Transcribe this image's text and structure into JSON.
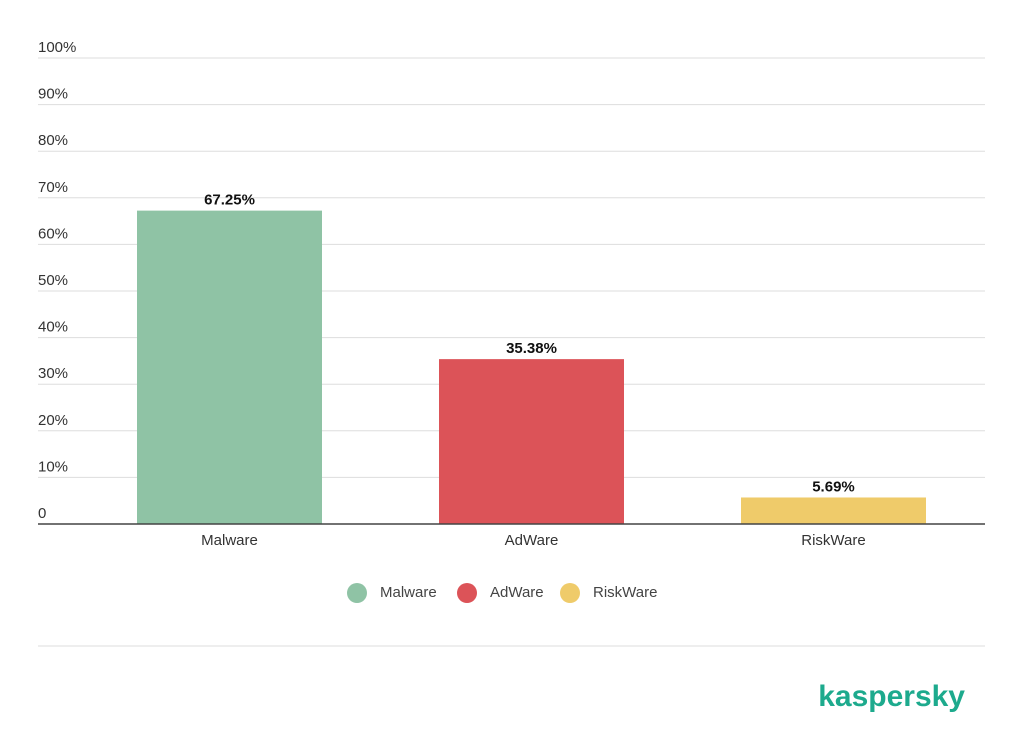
{
  "chart_data": {
    "type": "bar",
    "categories": [
      "Malware",
      "AdWare",
      "RiskWare"
    ],
    "values": [
      67.25,
      35.38,
      5.69
    ],
    "value_labels": [
      "67.25%",
      "35.38%",
      "5.69%"
    ],
    "colors": [
      "#8fc3a5",
      "#dc5358",
      "#efcb6a"
    ],
    "ylim": [
      0,
      100
    ],
    "yticks": [
      0,
      {
        "value": 10,
        "label": "10%"
      },
      {
        "value": 20,
        "label": "20%"
      },
      {
        "value": 30,
        "label": "30%"
      },
      {
        "value": 40,
        "label": "40%"
      },
      {
        "value": 50,
        "label": "50%"
      },
      {
        "value": 60,
        "label": "60%"
      },
      {
        "value": 70,
        "label": "70%"
      },
      {
        "value": 80,
        "label": "80%"
      },
      {
        "value": 90,
        "label": "90%"
      },
      {
        "value": 100,
        "label": "100%"
      }
    ],
    "grid": true,
    "legend": "bottom"
  },
  "brand": "kaspersky"
}
